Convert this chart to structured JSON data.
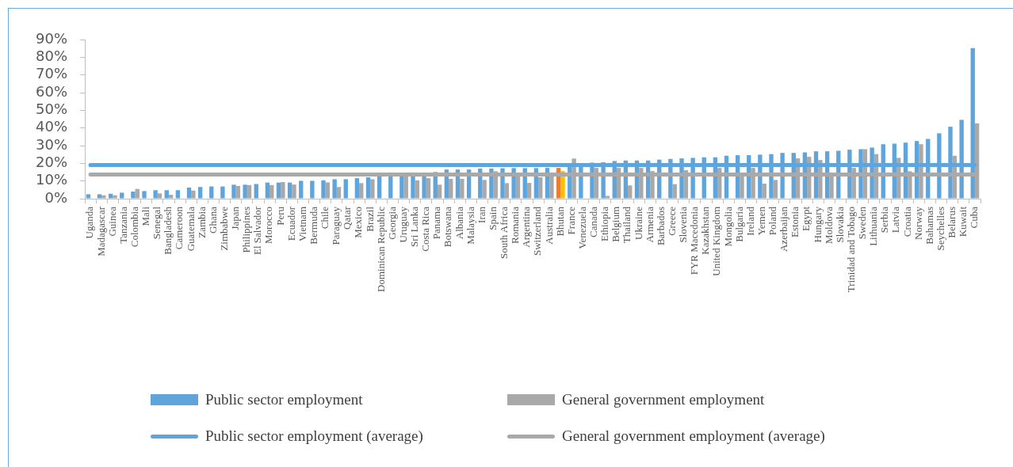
{
  "chart_data": {
    "type": "bar",
    "categories": [
      "Uganda",
      "Madagascar",
      "Guinea",
      "Tanzania",
      "Colombia",
      "Mali",
      "Senegal",
      "Bangladesh",
      "Cameroon",
      "Guatemala",
      "Zambia",
      "Ghana",
      "Zimbabwe",
      "Japan",
      "Philippines",
      "El Salvador",
      "Morocco",
      "Peru",
      "Ecuador",
      "Vietnam",
      "Bermuda",
      "Chile",
      "Paraguay",
      "Qatar",
      "Mexico",
      "Brazil",
      "Dominican Republic",
      "Georgia",
      "Uruguay",
      "Sri Lanka",
      "Costa Rica",
      "Panama",
      "Botswana",
      "Albania",
      "Malaysia",
      "Iran",
      "Spain",
      "South Africa",
      "Romania",
      "Argentina",
      "Switzerland",
      "Australia",
      "Bhutan",
      "France",
      "Venezuela",
      "Canada",
      "Ethiopia",
      "Belgium",
      "Thailand",
      "Ukraine",
      "Armenia",
      "Barbados",
      "Greece",
      "Slovenia",
      "FYR Macedonia",
      "Kazakhstan",
      "United Kingdom",
      "Mongolia",
      "Bulgaria",
      "Ireland",
      "Yemen",
      "Poland",
      "Azerbaijan",
      "Estonia",
      "Egypt",
      "Hungary",
      "Moldova",
      "Slovakia",
      "Trinidad and Tobago",
      "Sweden",
      "Lithuania",
      "Serbia",
      "Latvia",
      "Croatia",
      "Norway",
      "Bahamas",
      "Seychelles",
      "Belarus",
      "Kuwait",
      "Cuba"
    ],
    "ylim": [
      0,
      90
    ],
    "yticks": [
      {
        "value": 0,
        "label": "0%"
      },
      {
        "value": 10,
        "label": "10%"
      },
      {
        "value": 20,
        "label": "20%"
      },
      {
        "value": 30,
        "label": "30%"
      },
      {
        "value": 40,
        "label": "40%"
      },
      {
        "value": 50,
        "label": "50%"
      },
      {
        "value": 60,
        "label": "60%"
      },
      {
        "value": 70,
        "label": "70%"
      },
      {
        "value": 80,
        "label": "80%"
      },
      {
        "value": 90,
        "label": "90%"
      }
    ],
    "legend": "bottom",
    "series": [
      {
        "name": "Public sector employment",
        "color": "#5fa5dc",
        "colors": [
          "#5fa5dc",
          "#5fa5dc",
          "#5fa5dc",
          "#5fa5dc",
          "#5fa5dc",
          "#5fa5dc",
          "#5fa5dc",
          "#5fa5dc",
          "#5fa5dc",
          "#5fa5dc",
          "#5fa5dc",
          "#5fa5dc",
          "#5fa5dc",
          "#5fa5dc",
          "#5fa5dc",
          "#5fa5dc",
          "#5fa5dc",
          "#5fa5dc",
          "#5fa5dc",
          "#5fa5dc",
          "#5fa5dc",
          "#5fa5dc",
          "#5fa5dc",
          "#5fa5dc",
          "#5fa5dc",
          "#5fa5dc",
          "#5fa5dc",
          "#5fa5dc",
          "#5fa5dc",
          "#5fa5dc",
          "#5fa5dc",
          "#5fa5dc",
          "#5fa5dc",
          "#5fa5dc",
          "#5fa5dc",
          "#5fa5dc",
          "#5fa5dc",
          "#5fa5dc",
          "#5fa5dc",
          "#5fa5dc",
          "#5fa5dc",
          "#5fa5dc",
          "#ed7d31",
          "#5fa5dc",
          "#5fa5dc",
          "#5fa5dc",
          "#5fa5dc",
          "#5fa5dc",
          "#5fa5dc",
          "#5fa5dc",
          "#5fa5dc",
          "#5fa5dc",
          "#5fa5dc",
          "#5fa5dc",
          "#5fa5dc",
          "#5fa5dc",
          "#5fa5dc",
          "#5fa5dc",
          "#5fa5dc",
          "#5fa5dc",
          "#5fa5dc",
          "#5fa5dc",
          "#5fa5dc",
          "#5fa5dc",
          "#5fa5dc",
          "#5fa5dc",
          "#5fa5dc",
          "#5fa5dc",
          "#5fa5dc",
          "#5fa5dc",
          "#5fa5dc",
          "#5fa5dc",
          "#5fa5dc",
          "#5fa5dc",
          "#5fa5dc",
          "#5fa5dc",
          "#5fa5dc",
          "#5fa5dc",
          "#5fa5dc",
          "#5fa5dc"
        ],
        "values": [
          2.5,
          2.5,
          2.8,
          3.4,
          4.0,
          4.3,
          4.8,
          4.8,
          4.8,
          6.3,
          6.6,
          6.9,
          6.9,
          7.9,
          7.9,
          8.3,
          9.1,
          9.1,
          9.1,
          10.1,
          10.1,
          10.4,
          11.0,
          11.0,
          11.6,
          12.1,
          12.8,
          13.0,
          13.5,
          13.8,
          14.0,
          15.1,
          16.5,
          16.5,
          16.5,
          17.0,
          17.0,
          17.2,
          17.3,
          17.3,
          17.3,
          17.4,
          17.4,
          18.0,
          19.0,
          20.4,
          20.6,
          21.3,
          21.6,
          21.6,
          21.6,
          22.1,
          22.5,
          22.8,
          23.1,
          23.4,
          23.4,
          24.3,
          24.6,
          24.6,
          24.9,
          25.2,
          25.9,
          25.9,
          26.2,
          26.8,
          26.8,
          27.1,
          27.7,
          28.0,
          28.9,
          30.8,
          31.1,
          31.7,
          32.6,
          33.8,
          37.0,
          40.7,
          44.6,
          85.2
        ]
      },
      {
        "name": "General government employment",
        "color": "#a9a9a9",
        "colors": [
          "#a9a9a9",
          "#a9a9a9",
          "#a9a9a9",
          "#a9a9a9",
          "#a9a9a9",
          "#a9a9a9",
          "#a9a9a9",
          "#a9a9a9",
          "#a9a9a9",
          "#a9a9a9",
          "#a9a9a9",
          "#a9a9a9",
          "#a9a9a9",
          "#a9a9a9",
          "#a9a9a9",
          "#a9a9a9",
          "#a9a9a9",
          "#a9a9a9",
          "#a9a9a9",
          "#a9a9a9",
          "#a9a9a9",
          "#a9a9a9",
          "#a9a9a9",
          "#a9a9a9",
          "#a9a9a9",
          "#a9a9a9",
          "#a9a9a9",
          "#a9a9a9",
          "#a9a9a9",
          "#a9a9a9",
          "#a9a9a9",
          "#a9a9a9",
          "#a9a9a9",
          "#a9a9a9",
          "#a9a9a9",
          "#a9a9a9",
          "#a9a9a9",
          "#a9a9a9",
          "#a9a9a9",
          "#a9a9a9",
          "#a9a9a9",
          "#a9a9a9",
          "#ffc000",
          "#a9a9a9",
          "#a9a9a9",
          "#a9a9a9",
          "#a9a9a9",
          "#a9a9a9",
          "#a9a9a9",
          "#a9a9a9",
          "#a9a9a9",
          "#a9a9a9",
          "#a9a9a9",
          "#a9a9a9",
          "#a9a9a9",
          "#a9a9a9",
          "#a9a9a9",
          "#a9a9a9",
          "#a9a9a9",
          "#a9a9a9",
          "#a9a9a9",
          "#a9a9a9",
          "#a9a9a9",
          "#a9a9a9",
          "#a9a9a9",
          "#a9a9a9",
          "#a9a9a9",
          "#a9a9a9",
          "#a9a9a9",
          "#a9a9a9",
          "#a9a9a9",
          "#a9a9a9",
          "#a9a9a9",
          "#a9a9a9",
          "#a9a9a9",
          "#a9a9a9",
          "#a9a9a9",
          "#a9a9a9",
          "#a9a9a9",
          "#a9a9a9"
        ],
        "values": [
          null,
          1.9,
          1.9,
          null,
          5.5,
          null,
          3.0,
          2.2,
          null,
          4.6,
          null,
          null,
          null,
          7.2,
          7.7,
          null,
          7.7,
          9.4,
          8.0,
          null,
          null,
          9.2,
          6.6,
          null,
          8.8,
          11.0,
          null,
          null,
          13.5,
          10.4,
          11.6,
          7.9,
          11.2,
          11.2,
          null,
          10.6,
          15.5,
          8.8,
          13.5,
          8.9,
          12.1,
          14.0,
          15.6,
          22.7,
          null,
          17.4,
          1.6,
          17.4,
          7.5,
          17.4,
          15.6,
          null,
          8.2,
          16.1,
          null,
          null,
          17.4,
          null,
          14.0,
          17.4,
          8.5,
          10.6,
          null,
          22.8,
          23.7,
          21.9,
          14.0,
          null,
          17.4,
          28.0,
          25.2,
          null,
          23.1,
          15.5,
          30.8,
          null,
          null,
          24.3,
          null,
          42.6
        ]
      }
    ],
    "ref_lines": [
      {
        "axis": "y",
        "value": 19.0,
        "label": "Public sector employment (average)",
        "color": "#5fa5dc"
      },
      {
        "axis": "y",
        "value": 13.7,
        "label": "General government employment (average)",
        "color": "#a9a9a9"
      }
    ]
  }
}
